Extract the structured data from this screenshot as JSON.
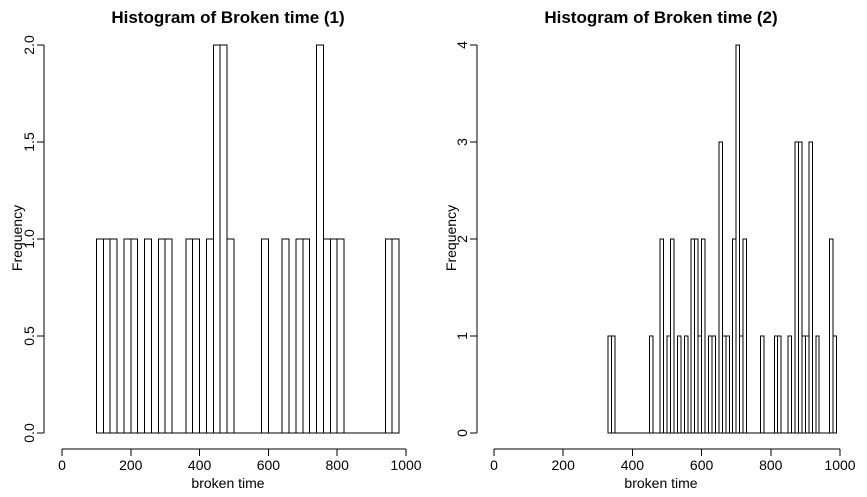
{
  "chart_data": [
    {
      "type": "bar",
      "title": "Histogram of Broken time (1)",
      "xlabel": "broken time",
      "ylabel": "Frequency",
      "xlim": [
        0,
        1000
      ],
      "ylim": [
        0,
        2
      ],
      "x_ticks": [
        "0",
        "200",
        "400",
        "600",
        "800",
        "1000"
      ],
      "y_ticks": [
        "0.0",
        "0.5",
        "1.0",
        "1.5",
        "2.0"
      ],
      "bin_width": 20,
      "bins": [
        {
          "start": 100,
          "count": 1
        },
        {
          "start": 120,
          "count": 1
        },
        {
          "start": 140,
          "count": 1
        },
        {
          "start": 180,
          "count": 1
        },
        {
          "start": 200,
          "count": 1
        },
        {
          "start": 240,
          "count": 1
        },
        {
          "start": 280,
          "count": 1
        },
        {
          "start": 300,
          "count": 1
        },
        {
          "start": 360,
          "count": 1
        },
        {
          "start": 380,
          "count": 1
        },
        {
          "start": 420,
          "count": 1
        },
        {
          "start": 440,
          "count": 2
        },
        {
          "start": 460,
          "count": 2
        },
        {
          "start": 480,
          "count": 1
        },
        {
          "start": 580,
          "count": 1
        },
        {
          "start": 640,
          "count": 1
        },
        {
          "start": 680,
          "count": 1
        },
        {
          "start": 700,
          "count": 1
        },
        {
          "start": 740,
          "count": 2
        },
        {
          "start": 760,
          "count": 1
        },
        {
          "start": 780,
          "count": 1
        },
        {
          "start": 800,
          "count": 1
        },
        {
          "start": 940,
          "count": 1
        },
        {
          "start": 960,
          "count": 1
        }
      ],
      "grid": false
    },
    {
      "type": "bar",
      "title": "Histogram of Broken time (2)",
      "xlabel": "broken time",
      "ylabel": "Frequency",
      "xlim": [
        0,
        1000
      ],
      "ylim": [
        0,
        4
      ],
      "x_ticks": [
        "0",
        "200",
        "400",
        "600",
        "800",
        "1000"
      ],
      "y_ticks": [
        "0",
        "1",
        "2",
        "3",
        "4"
      ],
      "bin_width": 10,
      "bins": [
        {
          "start": 330,
          "count": 1
        },
        {
          "start": 340,
          "count": 1
        },
        {
          "start": 450,
          "count": 1
        },
        {
          "start": 480,
          "count": 2
        },
        {
          "start": 500,
          "count": 1
        },
        {
          "start": 510,
          "count": 2
        },
        {
          "start": 530,
          "count": 1
        },
        {
          "start": 550,
          "count": 1
        },
        {
          "start": 570,
          "count": 2
        },
        {
          "start": 580,
          "count": 2
        },
        {
          "start": 590,
          "count": 1
        },
        {
          "start": 600,
          "count": 2
        },
        {
          "start": 620,
          "count": 1
        },
        {
          "start": 630,
          "count": 1
        },
        {
          "start": 650,
          "count": 3
        },
        {
          "start": 660,
          "count": 1
        },
        {
          "start": 670,
          "count": 1
        },
        {
          "start": 690,
          "count": 2
        },
        {
          "start": 700,
          "count": 4
        },
        {
          "start": 710,
          "count": 1
        },
        {
          "start": 720,
          "count": 2
        },
        {
          "start": 770,
          "count": 1
        },
        {
          "start": 810,
          "count": 1
        },
        {
          "start": 820,
          "count": 1
        },
        {
          "start": 850,
          "count": 1
        },
        {
          "start": 870,
          "count": 3
        },
        {
          "start": 880,
          "count": 3
        },
        {
          "start": 890,
          "count": 1
        },
        {
          "start": 900,
          "count": 1
        },
        {
          "start": 910,
          "count": 3
        },
        {
          "start": 930,
          "count": 1
        },
        {
          "start": 970,
          "count": 2
        },
        {
          "start": 980,
          "count": 1
        }
      ],
      "grid": false
    }
  ]
}
